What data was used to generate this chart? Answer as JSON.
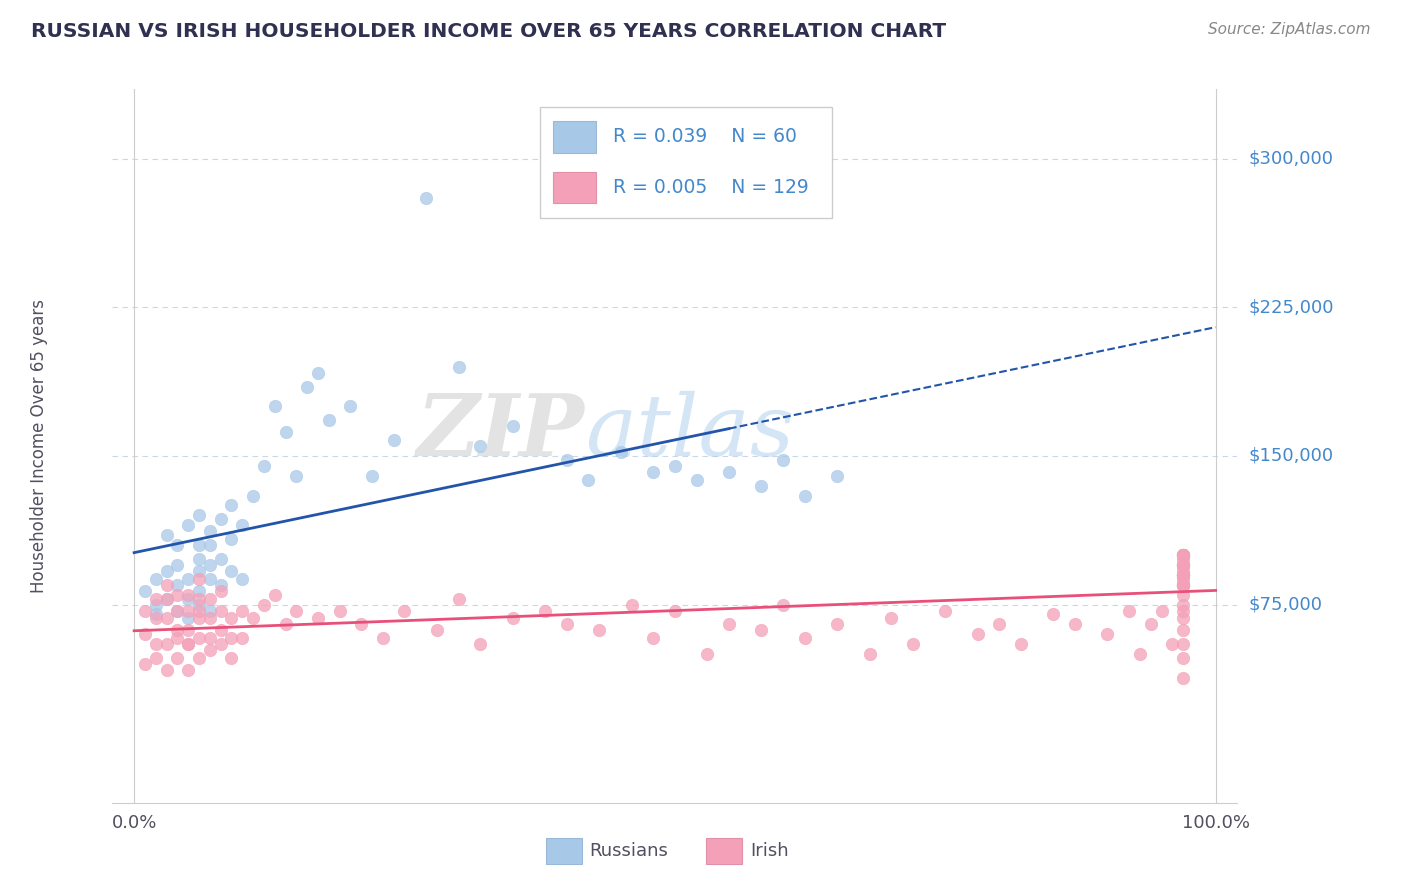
{
  "title": "RUSSIAN VS IRISH HOUSEHOLDER INCOME OVER 65 YEARS CORRELATION CHART",
  "source_text": "Source: ZipAtlas.com",
  "ylabel": "Householder Income Over 65 years",
  "watermark_zip": "ZIP",
  "watermark_atlas": "atlas",
  "legend_r1": "R = 0.039",
  "legend_n1": "N = 60",
  "legend_r2": "R = 0.005",
  "legend_n2": "N = 129",
  "legend_label1": "Russians",
  "legend_label2": "Irish",
  "russian_color": "#a8c8e8",
  "irish_color": "#f4a0b8",
  "russian_line_color": "#2255aa",
  "irish_line_color": "#e8507a",
  "title_color": "#303050",
  "axis_label_color": "#505060",
  "ytick_color": "#4488cc",
  "grid_color": "#c8d8e8",
  "background_color": "#ffffff",
  "source_color": "#888888",
  "xlim": [
    -2,
    102
  ],
  "ylim": [
    -25000,
    335000
  ],
  "ytick_vals": [
    75000,
    150000,
    225000,
    300000
  ],
  "ytick_labels": [
    "$75,000",
    "$150,000",
    "$225,000",
    "$300,000"
  ],
  "rus_x": [
    1,
    2,
    2,
    2,
    3,
    3,
    3,
    4,
    4,
    4,
    4,
    5,
    5,
    5,
    5,
    6,
    6,
    6,
    6,
    6,
    6,
    7,
    7,
    7,
    7,
    7,
    8,
    8,
    8,
    9,
    9,
    9,
    10,
    10,
    11,
    12,
    13,
    14,
    15,
    16,
    17,
    18,
    20,
    22,
    24,
    27,
    30,
    32,
    35,
    40,
    42,
    45,
    48,
    50,
    52,
    55,
    58,
    60,
    62,
    65
  ],
  "rus_y": [
    82000,
    75000,
    88000,
    70000,
    92000,
    78000,
    110000,
    85000,
    72000,
    95000,
    105000,
    68000,
    88000,
    115000,
    78000,
    92000,
    105000,
    120000,
    75000,
    82000,
    98000,
    88000,
    112000,
    95000,
    72000,
    105000,
    118000,
    85000,
    98000,
    125000,
    92000,
    108000,
    115000,
    88000,
    130000,
    145000,
    175000,
    162000,
    140000,
    185000,
    192000,
    168000,
    175000,
    140000,
    158000,
    280000,
    195000,
    155000,
    165000,
    148000,
    138000,
    152000,
    142000,
    145000,
    138000,
    142000,
    135000,
    148000,
    130000,
    140000
  ],
  "iri_x": [
    1,
    1,
    1,
    2,
    2,
    2,
    2,
    3,
    3,
    3,
    3,
    3,
    4,
    4,
    4,
    4,
    4,
    5,
    5,
    5,
    5,
    5,
    5,
    6,
    6,
    6,
    6,
    6,
    6,
    7,
    7,
    7,
    7,
    8,
    8,
    8,
    8,
    9,
    9,
    9,
    10,
    10,
    11,
    12,
    13,
    14,
    15,
    17,
    19,
    21,
    23,
    25,
    28,
    30,
    32,
    35,
    38,
    40,
    43,
    46,
    48,
    50,
    53,
    55,
    58,
    60,
    62,
    65,
    68,
    70,
    72,
    75,
    78,
    80,
    82,
    85,
    87,
    90,
    92,
    93,
    94,
    95,
    96,
    97,
    97,
    97,
    97,
    97,
    97,
    97,
    97,
    97,
    97,
    97,
    97,
    97,
    97,
    97,
    97,
    97,
    97,
    97,
    97,
    97,
    97,
    97,
    97,
    97,
    97,
    97,
    97,
    97,
    97,
    97,
    97,
    97,
    97,
    97,
    97,
    97,
    97,
    97,
    97,
    97,
    97,
    97,
    97,
    97,
    97
  ],
  "iri_y": [
    60000,
    45000,
    72000,
    55000,
    48000,
    68000,
    78000,
    55000,
    42000,
    68000,
    78000,
    85000,
    58000,
    48000,
    72000,
    80000,
    62000,
    55000,
    42000,
    72000,
    62000,
    80000,
    55000,
    48000,
    68000,
    78000,
    88000,
    58000,
    72000,
    58000,
    68000,
    78000,
    52000,
    62000,
    72000,
    82000,
    55000,
    58000,
    68000,
    48000,
    72000,
    58000,
    68000,
    75000,
    80000,
    65000,
    72000,
    68000,
    72000,
    65000,
    58000,
    72000,
    62000,
    78000,
    55000,
    68000,
    72000,
    65000,
    62000,
    75000,
    58000,
    72000,
    50000,
    65000,
    62000,
    75000,
    58000,
    65000,
    50000,
    68000,
    55000,
    72000,
    60000,
    65000,
    55000,
    70000,
    65000,
    60000,
    72000,
    50000,
    65000,
    72000,
    55000,
    38000,
    48000,
    55000,
    62000,
    68000,
    72000,
    75000,
    80000,
    85000,
    90000,
    95000,
    100000,
    85000,
    88000,
    90000,
    92000,
    95000,
    98000,
    100000,
    85000,
    90000,
    95000,
    100000,
    85000,
    90000,
    95000,
    100000,
    85000,
    90000,
    95000,
    100000,
    85000,
    90000,
    95000,
    100000,
    85000,
    90000,
    95000,
    100000,
    85000,
    90000,
    95000,
    100000,
    85000,
    90000,
    100000
  ]
}
